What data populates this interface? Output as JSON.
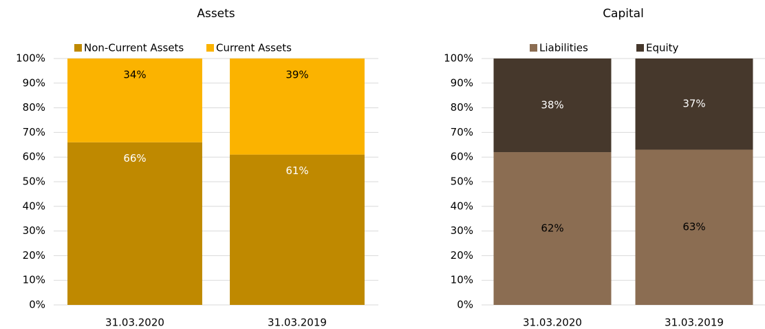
{
  "chart_data": [
    {
      "type": "stacked_bar",
      "title": "Assets",
      "categories": [
        "31.03.2020",
        "31.03.2019"
      ],
      "series": [
        {
          "name": "Non-Current Assets",
          "color": "#bf8900",
          "values": [
            66,
            61
          ],
          "value_labels": [
            "66%",
            "61%"
          ]
        },
        {
          "name": "Current Assets",
          "color": "#fbb300",
          "values": [
            34,
            39
          ],
          "value_labels": [
            "34%",
            "39%"
          ]
        }
      ],
      "ylim": [
        0,
        100
      ],
      "yticks": [
        {
          "value": 0,
          "label": "0%"
        },
        {
          "value": 10,
          "label": "10%"
        },
        {
          "value": 20,
          "label": "20%"
        },
        {
          "value": 30,
          "label": "30%"
        },
        {
          "value": 40,
          "label": "40%"
        },
        {
          "value": 50,
          "label": "50%"
        },
        {
          "value": 60,
          "label": "60%"
        },
        {
          "value": 70,
          "label": "70%"
        },
        {
          "value": 80,
          "label": "80%"
        },
        {
          "value": 90,
          "label": "90%"
        },
        {
          "value": 100,
          "label": "100%"
        }
      ],
      "grid": true,
      "legend": "top"
    },
    {
      "type": "stacked_bar",
      "title": "Capital",
      "categories": [
        "31.03.2020",
        "31.03.2019"
      ],
      "series": [
        {
          "name": "Liabilities",
          "color": "#8b6d52",
          "values": [
            62,
            63
          ],
          "value_labels": [
            "62%",
            "63%"
          ]
        },
        {
          "name": "Equity",
          "color": "#46382c",
          "values": [
            38,
            37
          ],
          "value_labels": [
            "38%",
            "37%"
          ]
        }
      ],
      "ylim": [
        0,
        100
      ],
      "yticks": [
        {
          "value": 0,
          "label": "0%"
        },
        {
          "value": 10,
          "label": "10%"
        },
        {
          "value": 20,
          "label": "20%"
        },
        {
          "value": 30,
          "label": "30%"
        },
        {
          "value": 40,
          "label": "40%"
        },
        {
          "value": 50,
          "label": "50%"
        },
        {
          "value": 60,
          "label": "60%"
        },
        {
          "value": 70,
          "label": "70%"
        },
        {
          "value": 80,
          "label": "80%"
        },
        {
          "value": 90,
          "label": "90%"
        },
        {
          "value": 100,
          "label": "100%"
        }
      ],
      "grid": true,
      "legend": "top"
    }
  ]
}
